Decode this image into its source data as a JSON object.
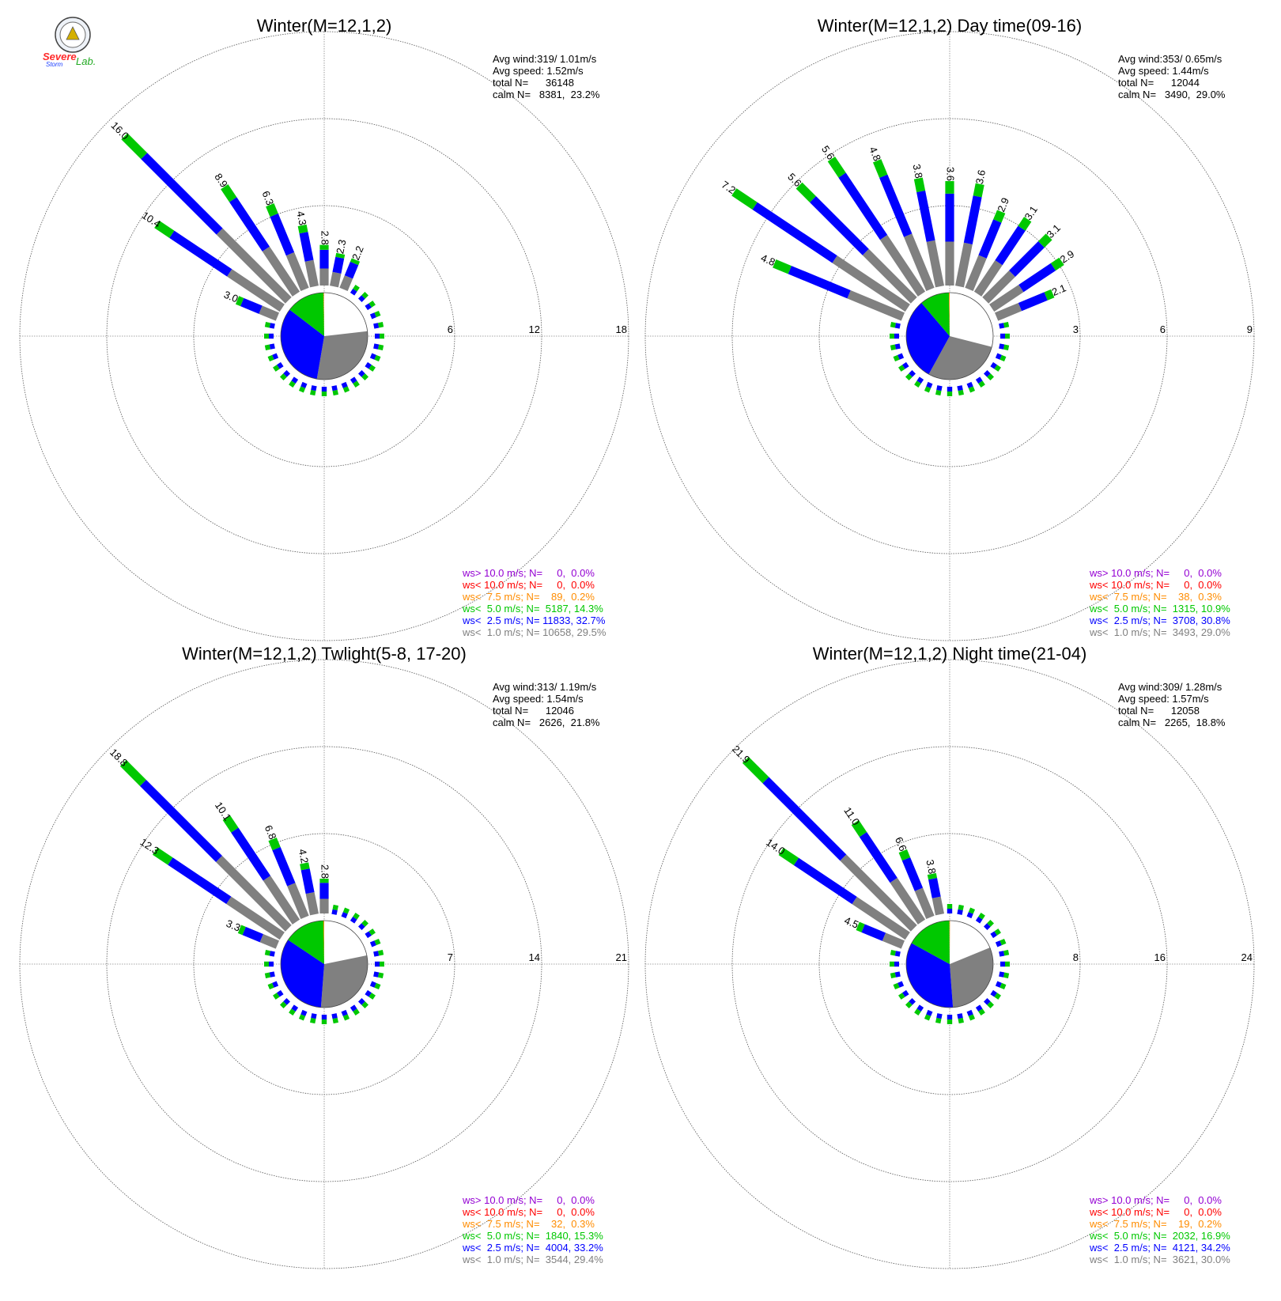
{
  "logo": {
    "line1": "Severe",
    "line2": "Storm",
    "line3": "Lab."
  },
  "colors": {
    "gt10": "#9400D3",
    "lt10": "#FF0000",
    "lt75": "#FF8C00",
    "lt50": "#00C800",
    "lt25": "#0000FF",
    "lt10ms": "#808080",
    "calm": "#FFFFFF",
    "grid": "#888888"
  },
  "chart_data": [
    {
      "type": "windrose",
      "title": "Winter(M=12,1,2)",
      "stats": [
        "Avg wind:319/ 1.01m/s",
        "Avg speed: 1.52m/s",
        "total N=      36148",
        "calm N=   8381,  23.2%"
      ],
      "rings": [
        "6",
        "12",
        "18"
      ],
      "ring_values": [
        6,
        12,
        18
      ],
      "calm_pie": [
        0.232,
        0.295,
        0.327,
        0.143,
        0.002
      ],
      "petals": [
        {
          "dir": 292.5,
          "total": 3.0,
          "label": "3.0"
        },
        {
          "dir": 303.75,
          "total": 10.4,
          "label": "10.4"
        },
        {
          "dir": 315,
          "total": 16.0,
          "label": "16.0"
        },
        {
          "dir": 326.25,
          "total": 8.9,
          "label": "8.9"
        },
        {
          "dir": 337.5,
          "total": 6.3,
          "label": "6.3"
        },
        {
          "dir": 348.75,
          "total": 4.3,
          "label": "4.3"
        },
        {
          "dir": 360,
          "total": 2.8,
          "label": "2.8"
        },
        {
          "dir": 11.25,
          "total": 2.3,
          "label": "2.3"
        },
        {
          "dir": 22.5,
          "total": 2.2,
          "label": "2.2"
        }
      ],
      "legend": [
        {
          "text": "ws> 10.0 m/s; N=     0,  0.0%",
          "key": "gt10"
        },
        {
          "text": "ws< 10.0 m/s; N=     0,  0.0%",
          "key": "lt10"
        },
        {
          "text": "ws<  7.5 m/s; N=    89,  0.2%",
          "key": "lt75"
        },
        {
          "text": "ws<  5.0 m/s; N=  5187, 14.3%",
          "key": "lt50"
        },
        {
          "text": "ws<  2.5 m/s; N= 11833, 32.7%",
          "key": "lt25"
        },
        {
          "text": "ws<  1.0 m/s; N= 10658, 29.5%",
          "key": "lt10ms"
        }
      ]
    },
    {
      "type": "windrose",
      "title": "Winter(M=12,1,2) Day time(09-16)",
      "stats": [
        "Avg wind:353/ 0.65m/s",
        "Avg speed: 1.44m/s",
        "total N=      12044",
        "calm N=   3490,  29.0%"
      ],
      "rings": [
        "3",
        "6",
        "9"
      ],
      "ring_values": [
        3,
        6,
        9
      ],
      "calm_pie": [
        0.29,
        0.29,
        0.308,
        0.109,
        0.003
      ],
      "petals": [
        {
          "dir": 292.5,
          "total": 4.8,
          "label": "4.8"
        },
        {
          "dir": 303.75,
          "total": 7.2,
          "label": "7.2"
        },
        {
          "dir": 315,
          "total": 5.6,
          "label": "5.6"
        },
        {
          "dir": 326.25,
          "total": 5.6,
          "label": "5.6"
        },
        {
          "dir": 337.5,
          "total": 4.8,
          "label": "4.8"
        },
        {
          "dir": 348.75,
          "total": 3.8,
          "label": "3.8"
        },
        {
          "dir": 360,
          "total": 3.6,
          "label": "3.6"
        },
        {
          "dir": 11.25,
          "total": 3.6,
          "label": "3.6"
        },
        {
          "dir": 22.5,
          "total": 2.9,
          "label": "2.9"
        },
        {
          "dir": 33.75,
          "total": 3.1,
          "label": "3.1"
        },
        {
          "dir": 45,
          "total": 3.1,
          "label": "3.1"
        },
        {
          "dir": 56.25,
          "total": 2.9,
          "label": "2.9"
        },
        {
          "dir": 67.5,
          "total": 2.1,
          "label": "2.1"
        }
      ],
      "legend": [
        {
          "text": "ws> 10.0 m/s; N=     0,  0.0%",
          "key": "gt10"
        },
        {
          "text": "ws< 10.0 m/s; N=     0,  0.0%",
          "key": "lt10"
        },
        {
          "text": "ws<  7.5 m/s; N=    38,  0.3%",
          "key": "lt75"
        },
        {
          "text": "ws<  5.0 m/s; N=  1315, 10.9%",
          "key": "lt50"
        },
        {
          "text": "ws<  2.5 m/s; N=  3708, 30.8%",
          "key": "lt25"
        },
        {
          "text": "ws<  1.0 m/s; N=  3493, 29.0%",
          "key": "lt10ms"
        }
      ]
    },
    {
      "type": "windrose",
      "title": "Winter(M=12,1,2) Twlight(5-8, 17-20)",
      "stats": [
        "Avg wind:313/ 1.19m/s",
        "Avg speed: 1.54m/s",
        "total N=      12046",
        "calm N=   2626,  21.8%"
      ],
      "rings": [
        "7",
        "14",
        "21"
      ],
      "ring_values": [
        7,
        14,
        21
      ],
      "calm_pie": [
        0.218,
        0.294,
        0.332,
        0.153,
        0.003
      ],
      "petals": [
        {
          "dir": 292.5,
          "total": 3.3,
          "label": "3.3"
        },
        {
          "dir": 303.75,
          "total": 12.3,
          "label": "12.3"
        },
        {
          "dir": 315,
          "total": 18.8,
          "label": "18.8"
        },
        {
          "dir": 326.25,
          "total": 10.1,
          "label": "10.1"
        },
        {
          "dir": 337.5,
          "total": 6.8,
          "label": "6.8"
        },
        {
          "dir": 348.75,
          "total": 4.2,
          "label": "4.2"
        },
        {
          "dir": 360,
          "total": 2.8,
          "label": "2.8"
        }
      ],
      "legend": [
        {
          "text": "ws> 10.0 m/s; N=     0,  0.0%",
          "key": "gt10"
        },
        {
          "text": "ws< 10.0 m/s; N=     0,  0.0%",
          "key": "lt10"
        },
        {
          "text": "ws<  7.5 m/s; N=    32,  0.3%",
          "key": "lt75"
        },
        {
          "text": "ws<  5.0 m/s; N=  1840, 15.3%",
          "key": "lt50"
        },
        {
          "text": "ws<  2.5 m/s; N=  4004, 33.2%",
          "key": "lt25"
        },
        {
          "text": "ws<  1.0 m/s; N=  3544, 29.4%",
          "key": "lt10ms"
        }
      ]
    },
    {
      "type": "windrose",
      "title": "Winter(M=12,1,2) Night time(21-04)",
      "stats": [
        "Avg wind:309/ 1.28m/s",
        "Avg speed: 1.57m/s",
        "total N=      12058",
        "calm N=   2265,  18.8%"
      ],
      "rings": [
        "8",
        "16",
        "24"
      ],
      "ring_values": [
        8,
        16,
        24
      ],
      "calm_pie": [
        0.188,
        0.3,
        0.342,
        0.169,
        0.002
      ],
      "petals": [
        {
          "dir": 292.5,
          "total": 4.5,
          "label": "4.5"
        },
        {
          "dir": 303.75,
          "total": 14.0,
          "label": "14.0"
        },
        {
          "dir": 315,
          "total": 21.9,
          "label": "21.9"
        },
        {
          "dir": 326.25,
          "total": 11.0,
          "label": "11.0"
        },
        {
          "dir": 337.5,
          "total": 6.6,
          "label": "6.6"
        },
        {
          "dir": 348.75,
          "total": 3.8,
          "label": "3.8"
        }
      ],
      "legend": [
        {
          "text": "ws> 10.0 m/s; N=     0,  0.0%",
          "key": "gt10"
        },
        {
          "text": "ws< 10.0 m/s; N=     0,  0.0%",
          "key": "lt10"
        },
        {
          "text": "ws<  7.5 m/s; N=    19,  0.2%",
          "key": "lt75"
        },
        {
          "text": "ws<  5.0 m/s; N=  2032, 16.9%",
          "key": "lt50"
        },
        {
          "text": "ws<  2.5 m/s; N=  4121, 34.2%",
          "key": "lt25"
        },
        {
          "text": "ws<  1.0 m/s; N=  3621, 30.0%",
          "key": "lt10ms"
        }
      ]
    }
  ]
}
